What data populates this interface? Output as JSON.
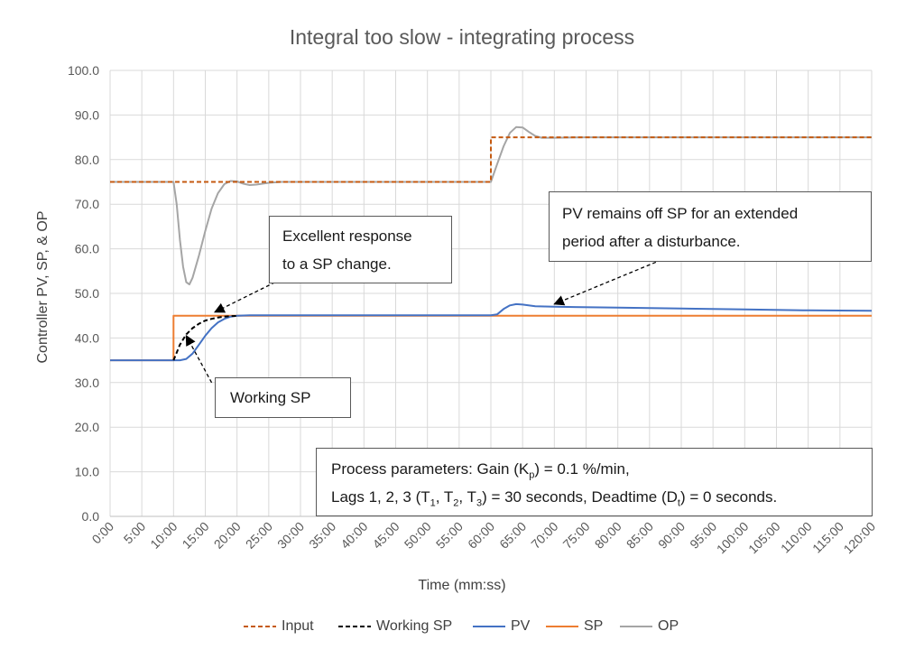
{
  "chart_data": {
    "type": "line",
    "title": "Integral too slow - integrating process",
    "xlabel": "Time (mm:ss)",
    "ylabel": "Controller PV, SP, & OP",
    "xlim": [
      0,
      120
    ],
    "ylim": [
      0,
      100
    ],
    "x_ticks": [
      "0:00",
      "5:00",
      "10:00",
      "15:00",
      "20:00",
      "25:00",
      "30:00",
      "35:00",
      "40:00",
      "45:00",
      "50:00",
      "55:00",
      "60:00",
      "65:00",
      "70:00",
      "75:00",
      "80:00",
      "85:00",
      "90:00",
      "95:00",
      "100:00",
      "105:00",
      "110:00",
      "115:00",
      "120:00"
    ],
    "y_ticks": [
      "0.0",
      "10.0",
      "20.0",
      "30.0",
      "40.0",
      "50.0",
      "60.0",
      "70.0",
      "80.0",
      "90.0",
      "100.0"
    ],
    "grid": true,
    "legend_position": "bottom",
    "series": [
      {
        "name": "Input",
        "color": "#c55a11",
        "dash": "dashed",
        "points": [
          [
            0,
            75
          ],
          [
            10,
            75
          ],
          [
            10,
            75
          ],
          [
            27,
            75
          ],
          [
            60,
            75
          ],
          [
            60,
            85
          ],
          [
            120,
            85
          ]
        ]
      },
      {
        "name": "Working SP",
        "color": "#000000",
        "dash": "dashed",
        "points": [
          [
            10,
            35
          ],
          [
            11,
            38.5
          ],
          [
            12,
            40.8
          ],
          [
            13,
            42.2
          ],
          [
            14,
            43.2
          ],
          [
            15,
            43.9
          ],
          [
            16,
            44.3
          ],
          [
            17,
            44.6
          ],
          [
            18,
            44.8
          ],
          [
            19,
            44.9
          ],
          [
            20,
            44.95
          ]
        ]
      },
      {
        "name": "PV",
        "color": "#4472c4",
        "dash": "solid",
        "points": [
          [
            0,
            35
          ],
          [
            10,
            35
          ],
          [
            11,
            35
          ],
          [
            12,
            35.3
          ],
          [
            13,
            36.5
          ],
          [
            14,
            38.5
          ],
          [
            15,
            40.5
          ],
          [
            16,
            42.2
          ],
          [
            17,
            43.5
          ],
          [
            18,
            44.3
          ],
          [
            19,
            44.8
          ],
          [
            20,
            45.0
          ],
          [
            22,
            45.1
          ],
          [
            25,
            45.1
          ],
          [
            30,
            45.1
          ],
          [
            40,
            45.1
          ],
          [
            50,
            45.1
          ],
          [
            60,
            45.1
          ],
          [
            61,
            45.3
          ],
          [
            62,
            46.5
          ],
          [
            63,
            47.3
          ],
          [
            64,
            47.6
          ],
          [
            65,
            47.5
          ],
          [
            67,
            47.1
          ],
          [
            70,
            47.0
          ],
          [
            80,
            46.8
          ],
          [
            90,
            46.6
          ],
          [
            100,
            46.4
          ],
          [
            110,
            46.2
          ],
          [
            120,
            46.1
          ]
        ]
      },
      {
        "name": "SP",
        "color": "#ed7d31",
        "dash": "solid",
        "points": [
          [
            0,
            35
          ],
          [
            10,
            35
          ],
          [
            10,
            45
          ],
          [
            120,
            45
          ]
        ]
      },
      {
        "name": "OP",
        "color": "#a5a5a5",
        "dash": "solid",
        "points": [
          [
            0,
            75
          ],
          [
            10,
            75
          ],
          [
            10.5,
            70
          ],
          [
            11,
            62
          ],
          [
            11.5,
            56
          ],
          [
            12,
            52.5
          ],
          [
            12.5,
            52
          ],
          [
            13,
            53.5
          ],
          [
            14,
            58.5
          ],
          [
            15,
            64
          ],
          [
            16,
            69
          ],
          [
            17,
            72.5
          ],
          [
            18,
            74.5
          ],
          [
            19,
            75.2
          ],
          [
            20,
            75.1
          ],
          [
            21,
            74.6
          ],
          [
            22,
            74.3
          ],
          [
            23,
            74.4
          ],
          [
            24,
            74.6
          ],
          [
            25,
            74.8
          ],
          [
            27,
            75
          ],
          [
            60,
            75
          ],
          [
            61,
            79
          ],
          [
            62,
            83
          ],
          [
            63,
            86
          ],
          [
            64,
            87.3
          ],
          [
            65,
            87.2
          ],
          [
            66,
            86.2
          ],
          [
            67,
            85.3
          ],
          [
            68,
            84.9
          ],
          [
            70,
            84.9
          ],
          [
            75,
            85
          ],
          [
            120,
            85
          ]
        ]
      }
    ],
    "annotations": [
      {
        "text": [
          "Excellent response",
          "to a SP change."
        ]
      },
      {
        "text": [
          "PV remains off SP for an extended",
          "period after a disturbance."
        ]
      },
      {
        "text": [
          "Working SP"
        ]
      },
      {
        "text": [
          "Process parameters:  Gain (K",
          "p",
          ") = 0.1 %/min,",
          "Lags 1, 2, 3 (T",
          "1",
          ", T",
          "2",
          ", T",
          "3",
          ") = 30 seconds, Deadtime (D",
          "t",
          ") = 0 seconds."
        ]
      }
    ],
    "arrows": [
      {
        "from": [
          26,
          52.5
        ],
        "to": [
          16.5,
          45.8
        ]
      },
      {
        "from": [
          86,
          57
        ],
        "to": [
          70,
          47.6
        ]
      },
      {
        "from": [
          16,
          30
        ],
        "to": [
          12,
          40.5
        ]
      }
    ]
  }
}
